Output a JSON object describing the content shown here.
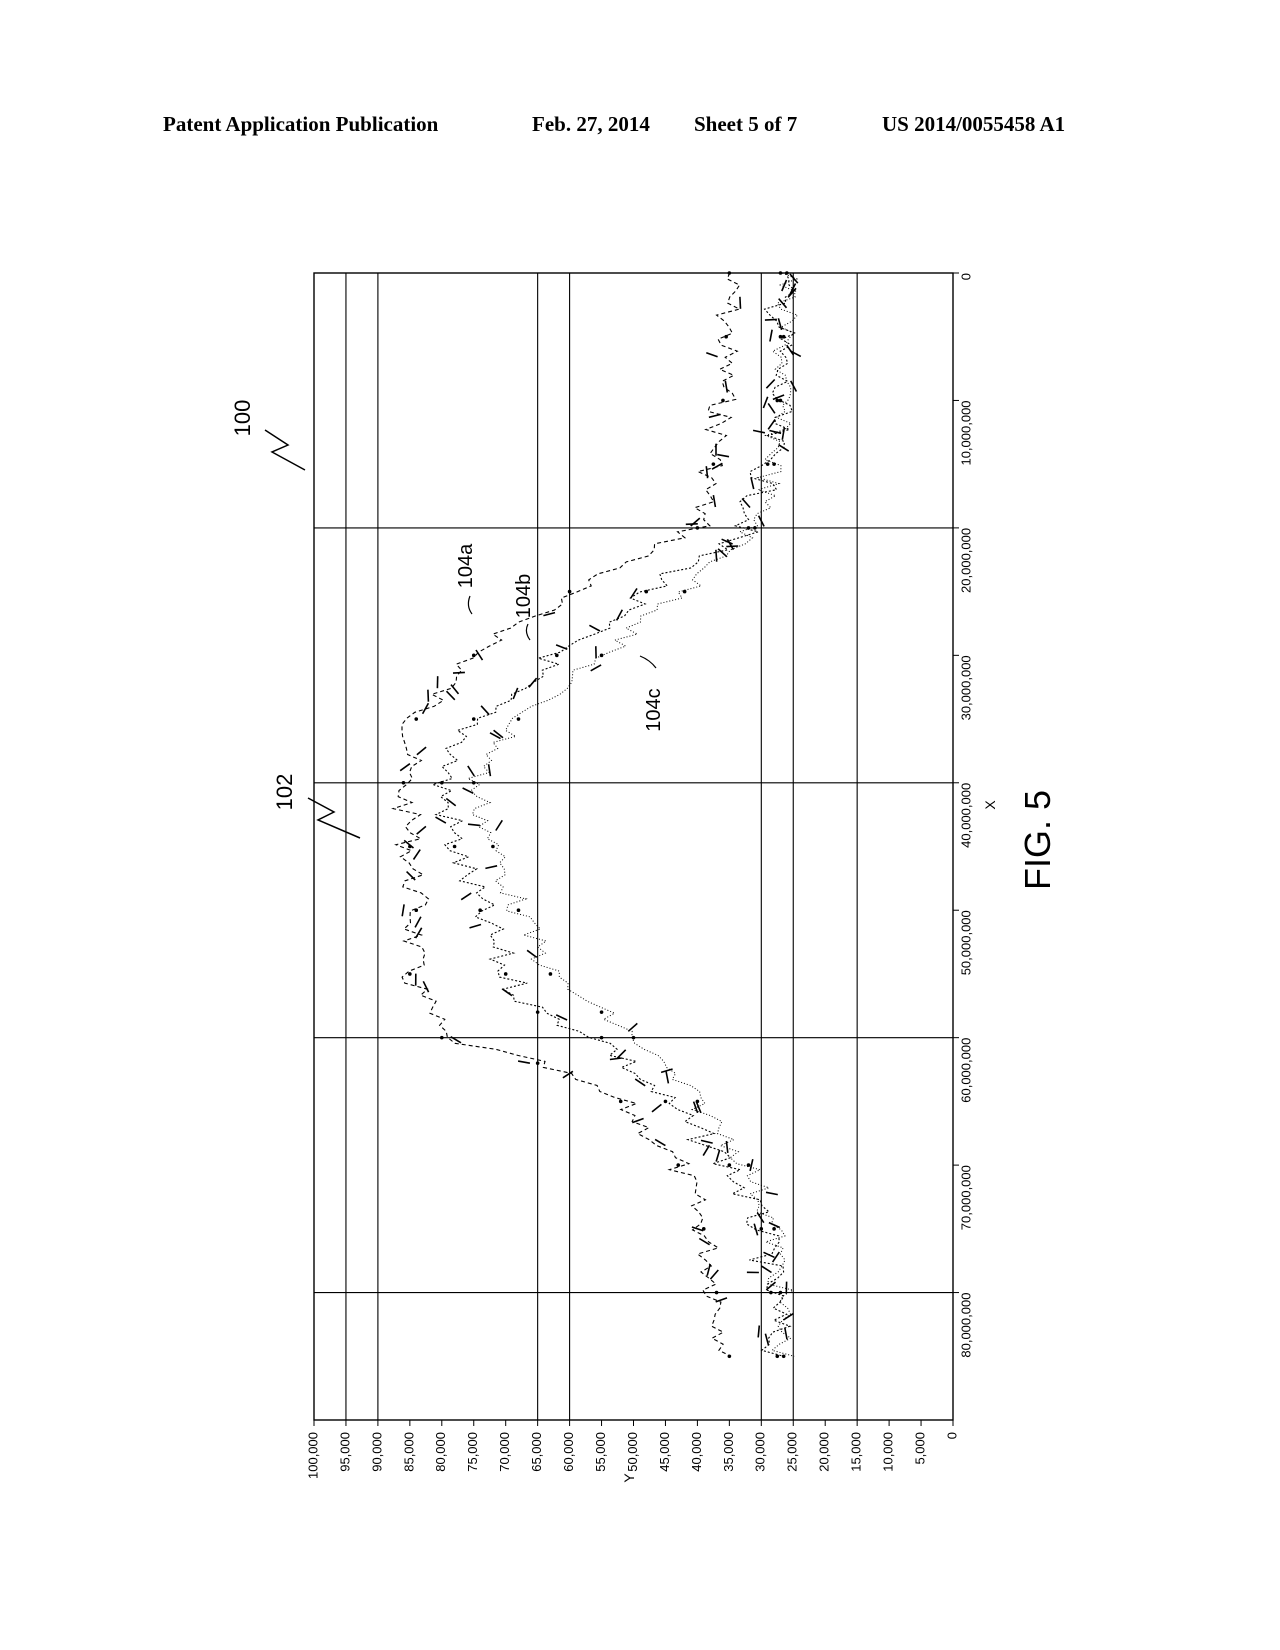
{
  "header": {
    "publication": "Patent Application Publication",
    "date": "Feb. 27, 2014",
    "sheet": "Sheet 5 of 7",
    "number": "US 2014/0055458 A1"
  },
  "figure": {
    "caption": "FIG. 5",
    "ref_figure": "100",
    "ref_plot": "102",
    "series_refs": [
      "104a",
      "104b",
      "104c"
    ]
  },
  "chart_data": {
    "type": "scatter",
    "xlabel": "X",
    "ylabel": "Y",
    "xlim": [
      0,
      90000000
    ],
    "ylim": [
      0,
      100000
    ],
    "x_tick_labels": [
      "0",
      "10,000,000",
      "20,000,000",
      "30,000,000",
      "40,000,000",
      "50,000,000",
      "60,000,000",
      "70,000,000",
      "80,000,000"
    ],
    "x_ticks": [
      0,
      10000000,
      20000000,
      30000000,
      40000000,
      50000000,
      60000000,
      70000000,
      80000000
    ],
    "y_tick_labels": [
      "0",
      "5,000",
      "10,000",
      "15,000",
      "20,000",
      "25,000",
      "30,000",
      "35,000",
      "40,000",
      "45,000",
      "50,000",
      "55,000",
      "60,000",
      "65,000",
      "70,000",
      "75,000",
      "80,000",
      "85,000",
      "90,000",
      "95,000",
      "100,000"
    ],
    "y_ticks": [
      0,
      5000,
      10000,
      15000,
      20000,
      25000,
      30000,
      35000,
      40000,
      45000,
      50000,
      55000,
      60000,
      65000,
      70000,
      75000,
      80000,
      85000,
      90000,
      95000,
      100000
    ],
    "gridlines_x": [
      20000000,
      40000000,
      60000000,
      80000000
    ],
    "gridlines_y": [
      15000,
      25000,
      30000,
      60000,
      65000,
      90000,
      95000
    ],
    "series": [
      {
        "name": "104a",
        "x": [
          0,
          5000000,
          10000000,
          15000000,
          20000000,
          25000000,
          30000000,
          35000000,
          40000000,
          45000000,
          50000000,
          55000000,
          60000000,
          62000000,
          65000000,
          70000000,
          75000000,
          80000000,
          85000000
        ],
        "values": [
          35000,
          35500,
          36000,
          37500,
          40000,
          60000,
          75000,
          84000,
          86000,
          85000,
          84000,
          85000,
          80000,
          65000,
          52000,
          43000,
          39000,
          37000,
          35000
        ]
      },
      {
        "name": "104b",
        "x": [
          0,
          5000000,
          10000000,
          15000000,
          20000000,
          25000000,
          30000000,
          35000000,
          40000000,
          45000000,
          50000000,
          55000000,
          58000000,
          60000000,
          65000000,
          70000000,
          75000000,
          80000000,
          85000000
        ],
        "values": [
          27000,
          27000,
          27500,
          29000,
          32000,
          48000,
          62000,
          75000,
          80000,
          78000,
          74000,
          70000,
          65000,
          55000,
          45000,
          35000,
          30000,
          28500,
          27500
        ]
      },
      {
        "name": "104c",
        "x": [
          0,
          5000000,
          10000000,
          15000000,
          20000000,
          25000000,
          30000000,
          35000000,
          40000000,
          45000000,
          50000000,
          55000000,
          58000000,
          60000000,
          65000000,
          70000000,
          75000000,
          80000000,
          85000000
        ],
        "values": [
          26000,
          26500,
          27000,
          28000,
          31000,
          42000,
          55000,
          68000,
          75000,
          72000,
          68000,
          63000,
          55000,
          50000,
          40000,
          32000,
          28000,
          27000,
          26500
        ]
      }
    ]
  }
}
